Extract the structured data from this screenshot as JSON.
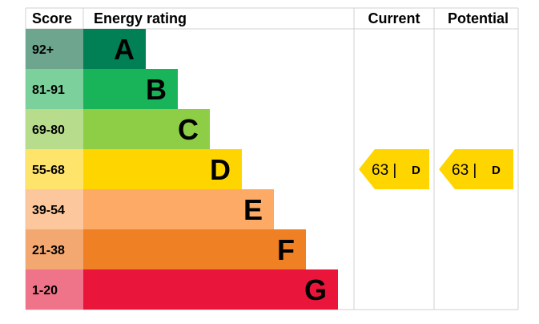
{
  "header": {
    "score": "Score",
    "rating": "Energy rating",
    "current": "Current",
    "potential": "Potential"
  },
  "chart_data": {
    "type": "bar",
    "categories": [
      "A",
      "B",
      "C",
      "D",
      "E",
      "F",
      "G"
    ],
    "bands": [
      {
        "letter": "A",
        "range": "92+",
        "color": "#008054",
        "score_color": "#6da58e",
        "letter_color": "#000000"
      },
      {
        "letter": "B",
        "range": "81-91",
        "color": "#19b459",
        "score_color": "#7bd09c",
        "letter_color": "#000000"
      },
      {
        "letter": "C",
        "range": "69-80",
        "color": "#8dce46",
        "score_color": "#b7dd8c",
        "letter_color": "#000000"
      },
      {
        "letter": "D",
        "range": "55-68",
        "color": "#ffd500",
        "score_color": "#ffe46b",
        "letter_color": "#000000"
      },
      {
        "letter": "E",
        "range": "39-54",
        "color": "#fcaa65",
        "score_color": "#fcc79d",
        "letter_color": "#000000"
      },
      {
        "letter": "F",
        "range": "21-38",
        "color": "#ef8023",
        "score_color": "#f4a871",
        "letter_color": "#000000"
      },
      {
        "letter": "G",
        "range": "1-20",
        "color": "#e9153b",
        "score_color": "#f07489",
        "letter_color": "#000000"
      }
    ],
    "current": {
      "value": "63",
      "band": "D",
      "label": "63 |",
      "color": "#ffd500"
    },
    "potential": {
      "value": "63",
      "band": "D",
      "label": "63 |",
      "color": "#ffd500"
    },
    "grid_color": "#d0d0d0"
  }
}
